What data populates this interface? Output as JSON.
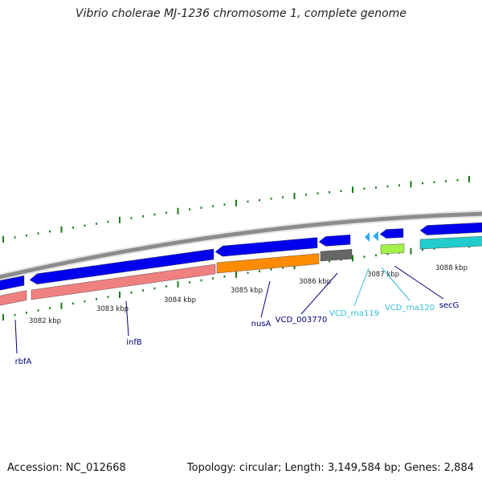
{
  "title": "Vibrio cholerae MJ-1236 chromosome 1, complete genome",
  "footer": {
    "accession": "Accession: NC_012668",
    "summary": "Topology: circular; Length: 3,149,584 bp; Genes: 2,884"
  },
  "colors": {
    "backbone": "#8c8c8c",
    "tick": "#1a7a1a",
    "cds": "#0000ee",
    "gene": "#f08080",
    "orange": "#ff8c00",
    "gray": "#666666",
    "green": "#a6f04a",
    "cyan": "#22cccc",
    "rna_arrow": "#33aaee",
    "label_dark": "#000080",
    "label_rna": "#33bbdd"
  },
  "scale_labels": [
    "3082 kbp",
    "3083 kbp",
    "3084 kbp",
    "3085 kbp",
    "3086 kbp",
    "3087 kbp",
    "3088 kbp"
  ],
  "genes": [
    {
      "name": "rbfA",
      "style": "dark"
    },
    {
      "name": "infB",
      "style": "dark"
    },
    {
      "name": "nusA",
      "style": "dark"
    },
    {
      "name": "VCD_003770",
      "style": "dark"
    },
    {
      "name": "VCD_rna119",
      "style": "rna"
    },
    {
      "name": "VCD_rna120",
      "style": "rna"
    },
    {
      "name": "secG",
      "style": "dark"
    }
  ]
}
